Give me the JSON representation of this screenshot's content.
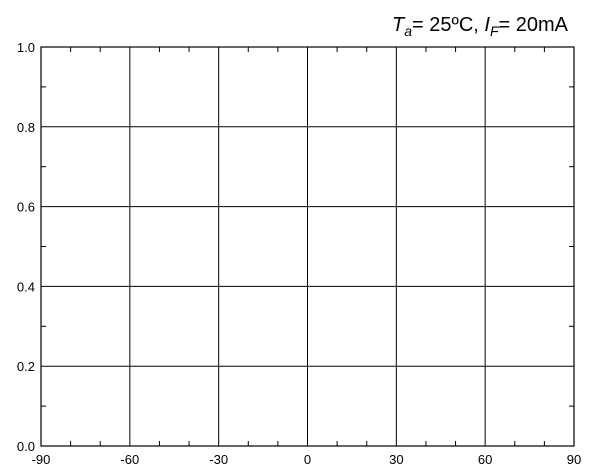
{
  "chart_data": {
    "type": "line",
    "title": "",
    "xlabel": "",
    "ylabel": "",
    "xlim": [
      -90,
      90
    ],
    "ylim": [
      0.0,
      1.0
    ],
    "x_ticks": [
      -90,
      -60,
      -30,
      0,
      30,
      60,
      90
    ],
    "x_tick_labels": [
      "-90",
      "-60",
      "-30",
      "0",
      "30",
      "60",
      "90"
    ],
    "y_ticks": [
      0.0,
      0.2,
      0.4,
      0.6,
      0.8,
      1.0
    ],
    "y_tick_labels": [
      "0.0",
      "0.2",
      "0.4",
      "0.6",
      "0.8",
      "1.0"
    ],
    "x_minor_step": 10,
    "y_minor_step": 0.1,
    "grid": true,
    "series": [],
    "annotation": {
      "parts": [
        {
          "text": "T",
          "style": "italic"
        },
        {
          "text": "a",
          "style": "italic-subscript"
        },
        {
          "text": "= 25ºC, ",
          "style": "normal"
        },
        {
          "text": "I",
          "style": "italic"
        },
        {
          "text": "F",
          "style": "italic-subscript"
        },
        {
          "text": "= 20mA",
          "style": "normal"
        }
      ]
    }
  }
}
